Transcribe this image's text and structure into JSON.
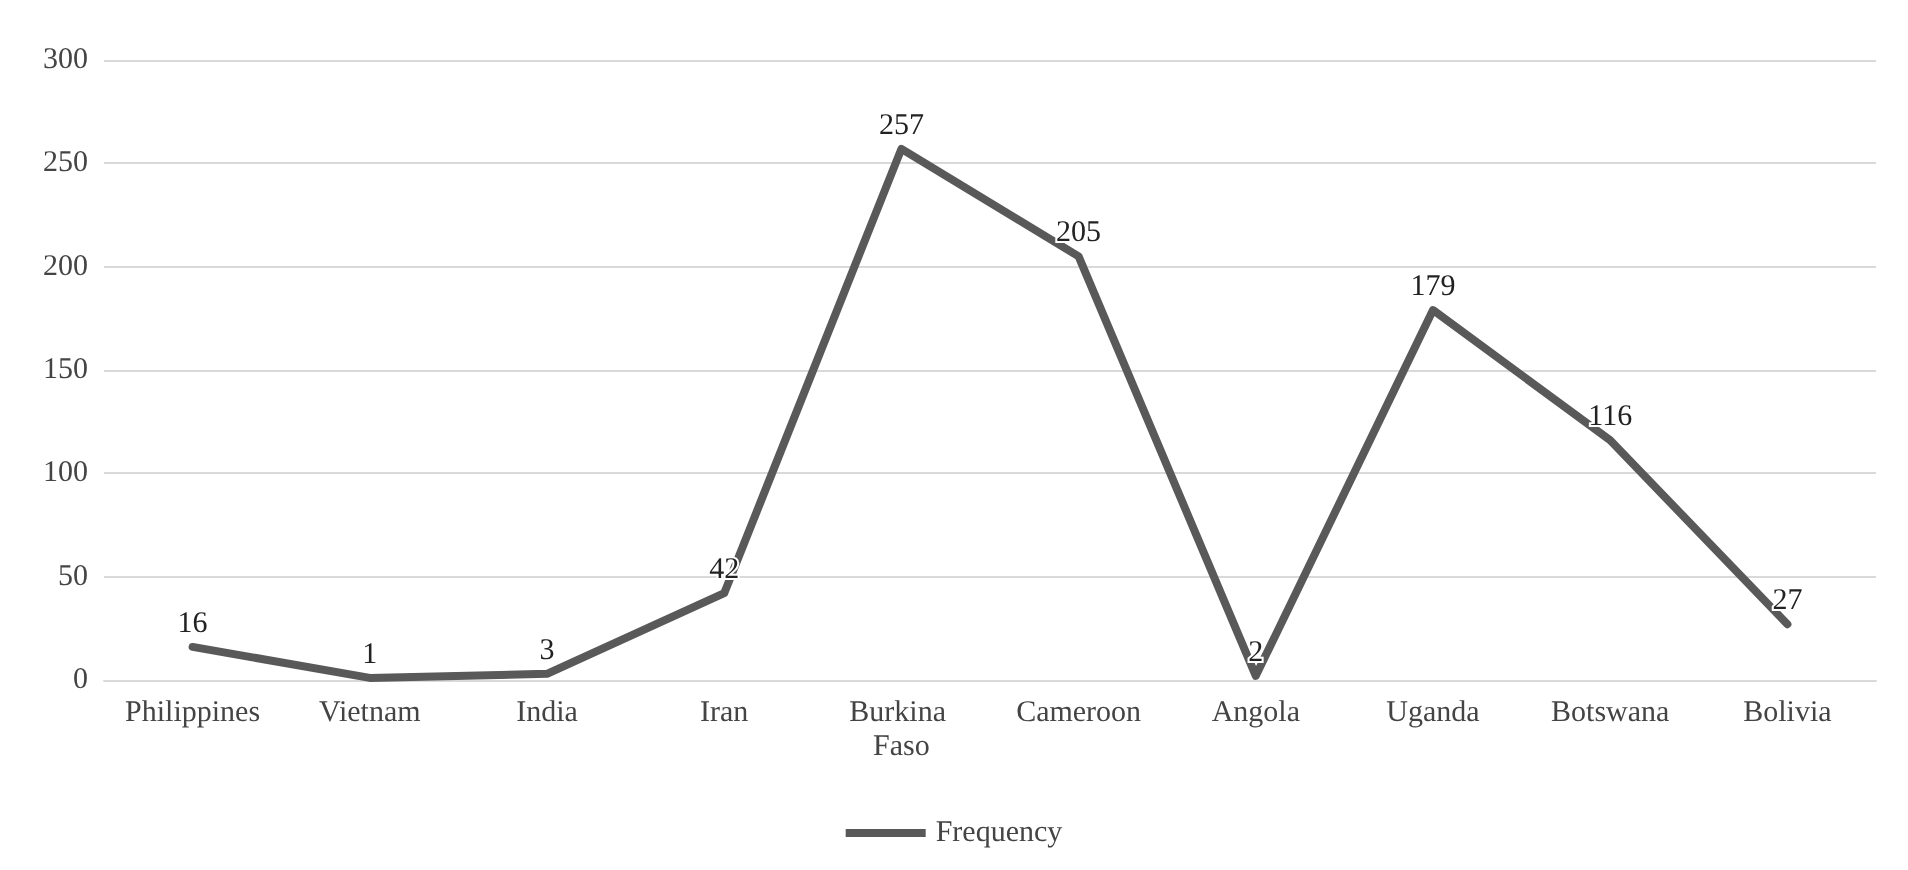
{
  "chart_data": {
    "type": "line",
    "categories": [
      "Philippines",
      "Vietnam",
      "India",
      "Iran",
      "Burkina Faso",
      "Cameroon",
      "Angola",
      "Uganda",
      "Botswana",
      "Bolivia"
    ],
    "series": [
      {
        "name": "Frequency",
        "color": "#595959",
        "values": [
          16,
          1,
          3,
          42,
          257,
          205,
          2,
          179,
          116,
          27
        ]
      }
    ],
    "ylim": [
      0,
      300
    ],
    "yticks": [
      0,
      50,
      100,
      150,
      200,
      250,
      300
    ],
    "grid": "y",
    "legend": "bottom",
    "data_labels": true,
    "marker": "none",
    "line_style": "solid"
  }
}
